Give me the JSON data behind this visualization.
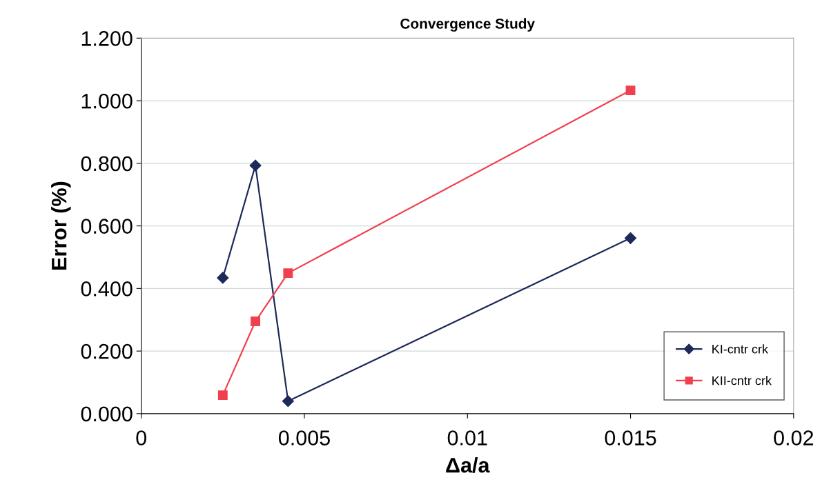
{
  "chart_data": {
    "type": "line",
    "title": "Convergence Study",
    "xlabel": "Δa/a",
    "ylabel": "Error (%)",
    "xlim": [
      0,
      0.02
    ],
    "xticks": [
      0,
      0.005,
      0.01,
      0.015,
      0.02
    ],
    "ylim": [
      0,
      1.2
    ],
    "yticks": [
      {
        "value": 0,
        "label": "0.000"
      },
      {
        "value": 0.2,
        "label": "0.200"
      },
      {
        "value": 0.4,
        "label": "0.400"
      },
      {
        "value": 0.6,
        "label": "0.600"
      },
      {
        "value": 0.8,
        "label": "0.800"
      },
      {
        "value": 1.0,
        "label": "1.000"
      },
      {
        "value": 1.2,
        "label": "1.200"
      }
    ],
    "grid": "y",
    "legend": "bottom right",
    "series": [
      {
        "name": "KI-cntr crk",
        "color": "#1c2a5a",
        "marker": "diamond",
        "x": [
          0.0025,
          0.0035,
          0.0045,
          0.015
        ],
        "values": [
          0.434,
          0.793,
          0.04,
          0.561
        ]
      },
      {
        "name": "KII-cntr crk",
        "color": "#f0404f",
        "marker": "square",
        "x": [
          0.0025,
          0.0035,
          0.0045,
          0.015
        ],
        "values": [
          0.059,
          0.295,
          0.449,
          1.033
        ]
      }
    ]
  }
}
